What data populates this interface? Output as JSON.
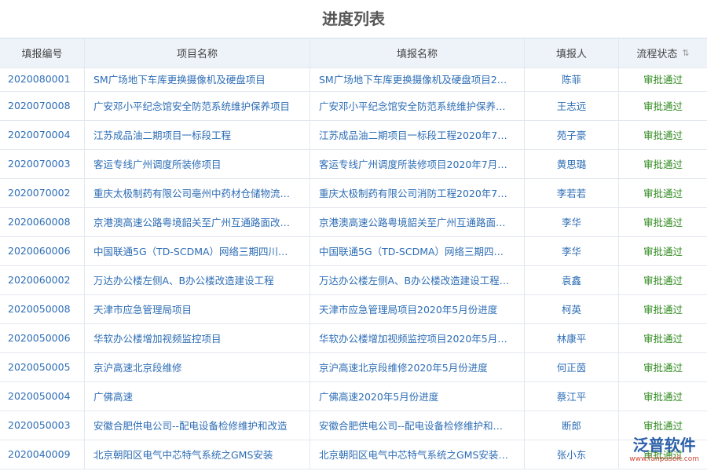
{
  "header": {
    "title": "进度列表"
  },
  "table": {
    "columns": [
      "填报编号",
      "项目名称",
      "填报名称",
      "填报人",
      "流程状态"
    ],
    "rows": [
      [
        "2020080001",
        "SM广场地下车库更换摄像机及硬盘项目",
        "SM广场地下车库更换摄像机及硬盘项目2…",
        "陈菲",
        "审批通过"
      ],
      [
        "2020070008",
        "广安邓小平纪念馆安全防范系统维护保养项目",
        "广安邓小平纪念馆安全防范系统维护保养…",
        "王志远",
        "审批通过"
      ],
      [
        "2020070004",
        "江苏成品油二期项目一标段工程",
        "江苏成品油二期项目一标段工程2020年7…",
        "苑子豪",
        "审批通过"
      ],
      [
        "2020070003",
        "客运专线广州调度所装修项目",
        "客运专线广州调度所装修项目2020年7月…",
        "黄思璐",
        "审批通过"
      ],
      [
        "2020070002",
        "重庆太极制药有限公司亳州中药材仓储物流…",
        "重庆太极制药有限公司消防工程2020年7…",
        "李若若",
        "审批通过"
      ],
      [
        "2020060008",
        "京港澳高速公路粤境韶关至广州互通路面改…",
        "京港澳高速公路粤境韶关至广州互通路面…",
        "李华",
        "审批通过"
      ],
      [
        "2020060006",
        "中国联通5G（TD-SCDMA）网络三期四川…",
        "中国联通5G（TD-SCDMA）网络三期四…",
        "李华",
        "审批通过"
      ],
      [
        "2020060002",
        "万达办公楼左侧A、B办公楼改造建设工程",
        "万达办公楼左侧A、B办公楼改造建设工程…",
        "袁鑫",
        "审批通过"
      ],
      [
        "2020050008",
        "天津市应急管理局项目",
        "天津市应急管理局项目2020年5月份进度",
        "柯英",
        "审批通过"
      ],
      [
        "2020050006",
        "华软办公楼增加视频监控项目",
        "华软办公楼增加视频监控项目2020年5月…",
        "林康平",
        "审批通过"
      ],
      [
        "2020050005",
        "京沪高速北京段维修",
        "京沪高速北京段维修2020年5月份进度",
        "何正茵",
        "审批通过"
      ],
      [
        "2020050004",
        "广佛高速",
        "广佛高速2020年5月份进度",
        "蔡江平",
        "审批通过"
      ],
      [
        "2020050003",
        "安徽合肥供电公司--配电设备检修维护和改造",
        "安徽合肥供电公司--配电设备检修维护和…",
        "断郎",
        "审批通过"
      ],
      [
        "2020040009",
        "北京朝阳区电气中芯特气系统之GMS安装",
        "北京朝阳区电气中芯特气系统之GMS安装…",
        "张小东",
        "审批通过"
      ]
    ]
  },
  "watermark": {
    "brand": "泛普软件",
    "url": "www.fanpusoft.com"
  }
}
